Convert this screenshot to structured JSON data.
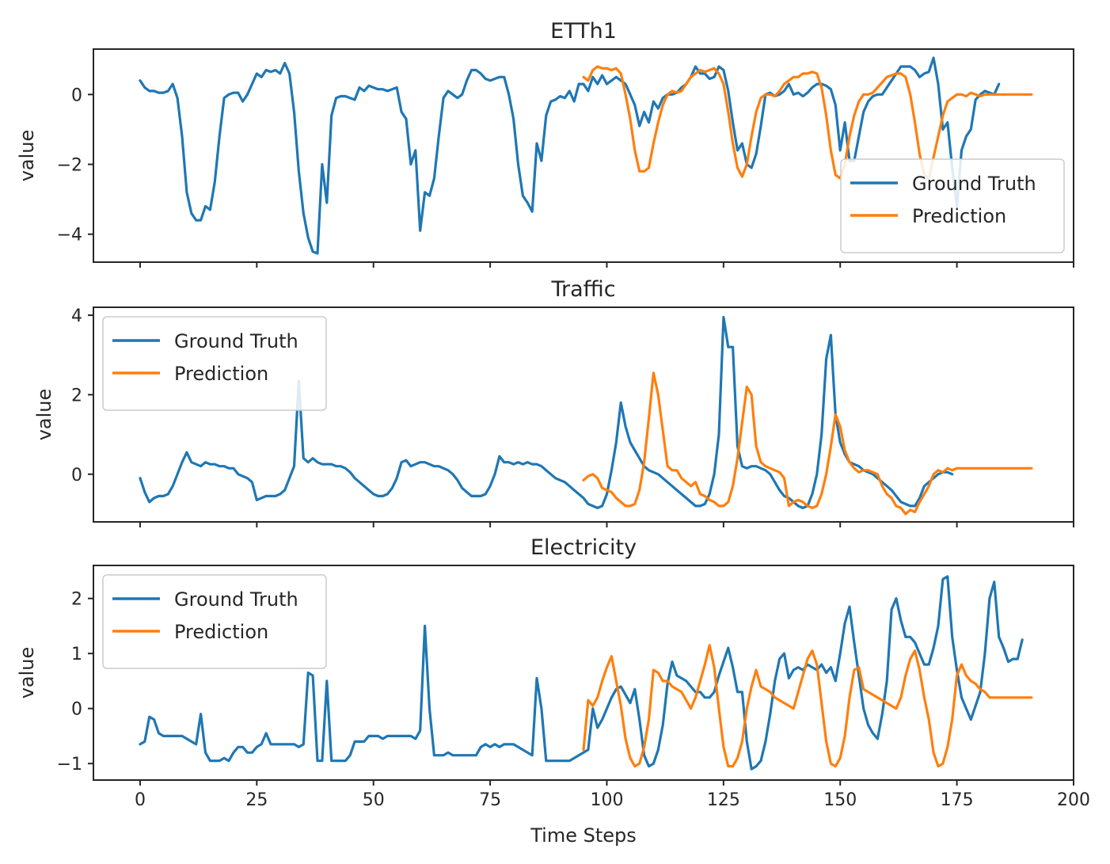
{
  "colors": {
    "ground_truth": "#1f77b4",
    "prediction": "#ff7f0e"
  },
  "chart_data": [
    {
      "type": "line",
      "title": "ETTh1",
      "xlabel": "",
      "ylabel": "value",
      "xlim": [
        -10,
        200
      ],
      "ylim": [
        -4.8,
        1.3
      ],
      "xticks": [
        0,
        25,
        50,
        75,
        100,
        125,
        150,
        175,
        200
      ],
      "xtick_labels_shown": false,
      "yticks": [
        0,
        -2,
        -4
      ],
      "ytick_labels": [
        "0",
        "−2",
        "−4"
      ],
      "legend_position": "lower-right",
      "grid": false,
      "series": [
        {
          "name": "Ground Truth",
          "color": "#1f77b4",
          "x_start": 0,
          "values": [
            0.4,
            0.2,
            0.1,
            0.1,
            0.05,
            0.05,
            0.1,
            0.3,
            -0.1,
            -1.2,
            -2.8,
            -3.4,
            -3.6,
            -3.6,
            -3.2,
            -3.3,
            -2.5,
            -1.2,
            -0.1,
            0.0,
            0.05,
            0.05,
            -0.2,
            0.0,
            0.3,
            0.6,
            0.5,
            0.7,
            0.65,
            0.7,
            0.6,
            0.9,
            0.6,
            -0.5,
            -2.2,
            -3.4,
            -4.1,
            -4.5,
            -4.55,
            -2.0,
            -3.1,
            -0.6,
            -0.1,
            -0.05,
            -0.05,
            -0.1,
            -0.15,
            0.2,
            0.1,
            0.25,
            0.2,
            0.15,
            0.15,
            0.1,
            0.15,
            0.2,
            -0.5,
            -0.7,
            -2.0,
            -1.6,
            -3.9,
            -2.8,
            -2.9,
            -2.4,
            -1.2,
            -0.1,
            0.1,
            0.0,
            -0.1,
            0.0,
            0.4,
            0.7,
            0.7,
            0.6,
            0.45,
            0.4,
            0.45,
            0.5,
            0.5,
            0.0,
            -0.7,
            -2.0,
            -2.9,
            -3.1,
            -3.35,
            -1.4,
            -1.9,
            -0.6,
            -0.2,
            -0.15,
            -0.05,
            -0.1,
            0.1,
            -0.2,
            0.3,
            0.3,
            0.1,
            0.5,
            0.3,
            0.55,
            0.3,
            0.4,
            0.5,
            0.4,
            0.3,
            0.0,
            -0.3,
            -0.9,
            -0.5,
            -0.8,
            -0.2,
            -0.4,
            -0.1,
            0.0,
            0.0,
            0.05,
            0.2,
            0.3,
            0.5,
            0.8,
            0.6,
            0.6,
            0.45,
            0.5,
            0.8,
            0.7,
            0.1,
            -0.8,
            -1.6,
            -1.4,
            -2.0,
            -2.1,
            -1.7,
            -0.9,
            0.0,
            0.05,
            -0.05,
            0.0,
            0.1,
            0.3,
            0.0,
            0.05,
            -0.05,
            0.05,
            0.2,
            0.3,
            0.3,
            0.25,
            0.15,
            -0.3,
            -1.6,
            -0.8,
            -1.9,
            -1.9,
            -1.2,
            -0.5,
            -0.2,
            -0.05,
            0.0,
            0.0,
            0.2,
            0.4,
            0.6,
            0.8,
            0.8,
            0.8,
            0.7,
            0.5,
            0.6,
            0.65,
            1.05,
            0.3,
            -1.0,
            -0.8,
            -2.1,
            -3.2,
            -1.6,
            -1.2,
            -1.0,
            -0.15,
            0.0,
            0.1,
            0.05,
            0.0,
            0.3
          ]
        },
        {
          "name": "Prediction",
          "color": "#ff7f0e",
          "x_start": 95,
          "values": [
            0.5,
            0.4,
            0.7,
            0.8,
            0.75,
            0.75,
            0.7,
            0.75,
            0.6,
            0.0,
            -0.7,
            -1.6,
            -2.2,
            -2.2,
            -2.1,
            -1.4,
            -0.8,
            -0.3,
            0.0,
            0.1,
            0.05,
            0.1,
            0.3,
            0.5,
            0.6,
            0.7,
            0.65,
            0.7,
            0.75,
            0.6,
            0.3,
            -0.5,
            -1.4,
            -2.1,
            -2.35,
            -2.0,
            -1.2,
            -0.5,
            -0.1,
            0.0,
            0.0,
            -0.05,
            0.1,
            0.3,
            0.4,
            0.5,
            0.5,
            0.6,
            0.6,
            0.65,
            0.6,
            0.2,
            -0.6,
            -1.6,
            -2.3,
            -2.4,
            -2.0,
            -1.2,
            -0.6,
            -0.2,
            0.0,
            0.0,
            0.05,
            0.2,
            0.35,
            0.5,
            0.55,
            0.6,
            0.6,
            0.5,
            0.0,
            -0.8,
            -1.7,
            -2.3,
            -2.4,
            -1.8,
            -1.2,
            -0.6,
            -0.2,
            -0.1,
            0.0,
            0.0,
            -0.05,
            0.05,
            0.0,
            -0.05,
            0.0,
            0.0,
            0.0,
            0.0,
            0.0,
            0.0,
            0.0,
            0.0,
            0.0,
            0.0,
            0.0
          ]
        }
      ]
    },
    {
      "type": "line",
      "title": "Traffic",
      "xlabel": "",
      "ylabel": "value",
      "xlim": [
        -10,
        200
      ],
      "ylim": [
        -1.2,
        4.2
      ],
      "xticks": [
        0,
        25,
        50,
        75,
        100,
        125,
        150,
        175,
        200
      ],
      "xtick_labels_shown": false,
      "yticks": [
        4,
        2,
        0
      ],
      "ytick_labels": [
        "4",
        "2",
        "0"
      ],
      "legend_position": "upper-left",
      "grid": false,
      "series": [
        {
          "name": "Ground Truth",
          "color": "#1f77b4",
          "x_start": 0,
          "values": [
            -0.1,
            -0.45,
            -0.7,
            -0.6,
            -0.55,
            -0.55,
            -0.5,
            -0.3,
            0.0,
            0.3,
            0.55,
            0.3,
            0.25,
            0.2,
            0.3,
            0.25,
            0.25,
            0.2,
            0.2,
            0.15,
            0.15,
            0.0,
            -0.05,
            -0.1,
            -0.2,
            -0.65,
            -0.6,
            -0.55,
            -0.55,
            -0.55,
            -0.5,
            -0.4,
            -0.1,
            0.2,
            2.35,
            0.4,
            0.3,
            0.4,
            0.3,
            0.25,
            0.25,
            0.25,
            0.2,
            0.2,
            0.15,
            0.05,
            -0.1,
            -0.2,
            -0.3,
            -0.4,
            -0.5,
            -0.55,
            -0.55,
            -0.5,
            -0.35,
            -0.1,
            0.3,
            0.35,
            0.2,
            0.25,
            0.3,
            0.3,
            0.25,
            0.2,
            0.2,
            0.15,
            0.1,
            0.0,
            -0.15,
            -0.35,
            -0.45,
            -0.55,
            -0.55,
            -0.55,
            -0.5,
            -0.3,
            0.0,
            0.45,
            0.3,
            0.3,
            0.25,
            0.3,
            0.25,
            0.3,
            0.25,
            0.25,
            0.2,
            0.1,
            0.0,
            -0.1,
            -0.15,
            -0.2,
            -0.3,
            -0.4,
            -0.5,
            -0.6,
            -0.75,
            -0.8,
            -0.85,
            -0.8,
            -0.5,
            0.1,
            0.8,
            1.8,
            1.2,
            0.8,
            0.6,
            0.4,
            0.2,
            0.1,
            0.05,
            0.0,
            -0.1,
            -0.2,
            -0.3,
            -0.4,
            -0.5,
            -0.6,
            -0.7,
            -0.8,
            -0.8,
            -0.75,
            -0.5,
            0.0,
            1.0,
            3.95,
            3.2,
            3.2,
            0.7,
            0.2,
            0.15,
            0.2,
            0.2,
            0.15,
            0.1,
            0.0,
            -0.2,
            -0.4,
            -0.55,
            -0.6,
            -0.7,
            -0.8,
            -0.85,
            -0.8,
            -0.5,
            0.0,
            1.0,
            2.9,
            3.5,
            1.5,
            0.8,
            0.5,
            0.3,
            0.25,
            0.2,
            0.1,
            0.05,
            0.0,
            -0.1,
            -0.2,
            -0.3,
            -0.4,
            -0.55,
            -0.7,
            -0.75,
            -0.8,
            -0.8,
            -0.6,
            -0.3,
            -0.2,
            -0.1,
            0.0,
            0.05,
            0.05,
            0.0
          ]
        },
        {
          "name": "Prediction",
          "color": "#ff7f0e",
          "x_start": 95,
          "values": [
            -0.15,
            -0.05,
            0.0,
            -0.1,
            -0.35,
            -0.4,
            -0.45,
            -0.6,
            -0.7,
            -0.8,
            -0.8,
            -0.75,
            -0.4,
            0.3,
            1.4,
            2.55,
            2.0,
            1.1,
            0.2,
            0.1,
            0.1,
            -0.1,
            -0.2,
            -0.3,
            -0.2,
            -0.5,
            -0.55,
            -0.65,
            -0.7,
            -0.8,
            -0.8,
            -0.7,
            -0.3,
            0.4,
            1.3,
            2.2,
            2.0,
            0.7,
            0.3,
            0.2,
            0.15,
            0.1,
            0.05,
            -0.1,
            -0.8,
            -0.7,
            -0.65,
            -0.7,
            -0.8,
            -0.85,
            -0.8,
            -0.5,
            0.0,
            0.7,
            1.5,
            1.2,
            0.6,
            0.3,
            0.15,
            0.05,
            0.1,
            0.1,
            0.05,
            0.0,
            -0.3,
            -0.5,
            -0.6,
            -0.8,
            -0.85,
            -1.0,
            -0.9,
            -0.95,
            -0.7,
            -0.5,
            -0.3,
            0.0,
            0.1,
            0.05,
            0.15,
            0.1,
            0.15,
            0.15,
            0.15,
            0.15,
            0.15,
            0.15,
            0.15,
            0.15,
            0.15,
            0.15,
            0.15,
            0.15,
            0.15,
            0.15,
            0.15,
            0.15,
            0.15
          ]
        }
      ]
    },
    {
      "type": "line",
      "title": "Electricity",
      "xlabel": "Time Steps",
      "ylabel": "value",
      "xlim": [
        -10,
        200
      ],
      "ylim": [
        -1.3,
        2.6
      ],
      "xticks": [
        0,
        25,
        50,
        75,
        100,
        125,
        150,
        175,
        200
      ],
      "xtick_labels": [
        "0",
        "25",
        "50",
        "75",
        "100",
        "125",
        "150",
        "175",
        "200"
      ],
      "yticks": [
        2,
        1,
        0,
        -1
      ],
      "ytick_labels": [
        "2",
        "1",
        "0",
        "−1"
      ],
      "legend_position": "upper-left",
      "grid": false,
      "series": [
        {
          "name": "Ground Truth",
          "color": "#1f77b4",
          "x_start": 0,
          "values": [
            -0.65,
            -0.6,
            -0.15,
            -0.2,
            -0.45,
            -0.5,
            -0.5,
            -0.5,
            -0.5,
            -0.5,
            -0.55,
            -0.6,
            -0.65,
            -0.1,
            -0.8,
            -0.95,
            -0.95,
            -0.95,
            -0.9,
            -0.95,
            -0.8,
            -0.7,
            -0.7,
            -0.8,
            -0.8,
            -0.7,
            -0.65,
            -0.45,
            -0.65,
            -0.65,
            -0.65,
            -0.65,
            -0.65,
            -0.65,
            -0.7,
            -0.65,
            0.65,
            0.6,
            -0.95,
            -0.95,
            0.5,
            -0.95,
            -0.95,
            -0.95,
            -0.95,
            -0.85,
            -0.6,
            -0.6,
            -0.6,
            -0.5,
            -0.5,
            -0.5,
            -0.55,
            -0.5,
            -0.5,
            -0.5,
            -0.5,
            -0.5,
            -0.5,
            -0.55,
            -0.4,
            1.5,
            0.0,
            -0.85,
            -0.85,
            -0.85,
            -0.8,
            -0.85,
            -0.85,
            -0.85,
            -0.85,
            -0.85,
            -0.85,
            -0.7,
            -0.65,
            -0.7,
            -0.65,
            -0.7,
            -0.65,
            -0.65,
            -0.65,
            -0.7,
            -0.75,
            -0.8,
            -0.85,
            0.55,
            0.0,
            -0.95,
            -0.95,
            -0.95,
            -0.95,
            -0.95,
            -0.95,
            -0.9,
            -0.85,
            -0.8,
            -0.75,
            0.0,
            -0.35,
            -0.2,
            0.0,
            0.2,
            0.35,
            0.4,
            0.25,
            0.1,
            0.35,
            -0.2,
            -0.85,
            -1.05,
            -1.0,
            -0.75,
            -0.3,
            0.45,
            0.85,
            0.6,
            0.55,
            0.5,
            0.4,
            0.3,
            0.3,
            0.2,
            0.2,
            0.3,
            0.6,
            0.85,
            1.1,
            0.75,
            0.3,
            0.3,
            -0.6,
            -1.1,
            -1.05,
            -0.95,
            -0.6,
            -0.1,
            0.5,
            0.9,
            1.0,
            0.55,
            0.7,
            0.75,
            0.7,
            0.8,
            0.75,
            0.7,
            0.8,
            0.65,
            0.75,
            0.5,
            1.0,
            1.55,
            1.85,
            1.2,
            0.6,
            0.0,
            -0.3,
            -0.45,
            -0.55,
            -0.1,
            0.5,
            1.8,
            2.0,
            1.6,
            1.3,
            1.3,
            1.2,
            1.0,
            0.8,
            0.8,
            1.1,
            1.5,
            2.35,
            2.4,
            1.3,
            0.7,
            0.2,
            0.0,
            -0.2,
            0.05,
            0.3,
            1.0,
            2.0,
            2.3,
            1.3,
            1.1,
            0.85,
            0.9,
            0.9,
            1.25
          ]
        },
        {
          "name": "Prediction",
          "color": "#ff7f0e",
          "x_start": 95,
          "values": [
            -0.75,
            0.15,
            0.05,
            0.2,
            0.5,
            0.75,
            0.95,
            0.5,
            0.05,
            -0.55,
            -0.9,
            -1.05,
            -1.0,
            -0.7,
            -0.2,
            0.7,
            0.65,
            0.5,
            0.5,
            0.4,
            0.35,
            0.3,
            0.15,
            0.0,
            0.2,
            0.5,
            0.8,
            1.15,
            0.75,
            0.0,
            -0.7,
            -1.05,
            -1.05,
            -0.9,
            -0.6,
            0.0,
            0.4,
            0.7,
            0.4,
            0.35,
            0.3,
            0.2,
            0.15,
            0.1,
            0.05,
            0.0,
            0.3,
            0.6,
            0.9,
            1.05,
            0.8,
            0.1,
            -0.6,
            -1.0,
            -1.05,
            -0.9,
            -0.5,
            0.2,
            0.7,
            0.75,
            0.35,
            0.3,
            0.25,
            0.2,
            0.15,
            0.1,
            0.05,
            0.0,
            0.2,
            0.6,
            0.9,
            1.05,
            0.7,
            0.2,
            -0.2,
            -0.8,
            -1.05,
            -1.0,
            -0.7,
            -0.2,
            0.6,
            0.8,
            0.6,
            0.5,
            0.45,
            0.35,
            0.3,
            0.2,
            0.2,
            0.2,
            0.2,
            0.2,
            0.2,
            0.2,
            0.2,
            0.2,
            0.2
          ]
        }
      ]
    }
  ]
}
